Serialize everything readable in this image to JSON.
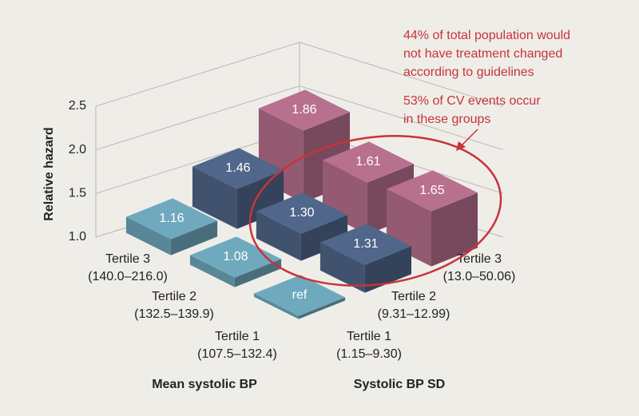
{
  "chart_data": {
    "type": "bar3d",
    "y_label": "Relative hazard",
    "ylim": [
      1,
      2.5
    ],
    "yticks": [
      {
        "value": 1,
        "label": "1.0"
      },
      1.5,
      {
        "value": 2,
        "label": "2.0"
      },
      2.5
    ],
    "x_axis": {
      "title": "Mean systolic BP",
      "categories": [
        "Tertile 1",
        "Tertile 2",
        "Tertile 3"
      ],
      "ranges": [
        "(107.5–132.4)",
        "(132.5–139.9)",
        "(140.0–216.0)"
      ]
    },
    "z_axis": {
      "title": "Systolic BP SD",
      "categories": [
        "Tertile 1",
        "Tertile 2",
        "Tertile 3"
      ],
      "ranges": [
        "(1.15–9.30)",
        "(9.31–12.99)",
        "(13.0–50.06)"
      ]
    },
    "series": [
      {
        "color": "#6fa9bd",
        "values": [
          1,
          1.08,
          1.16
        ],
        "value_labels": [
          "ref",
          "1.08",
          "1.16"
        ]
      },
      {
        "color": "#50668a",
        "values": [
          1.31,
          1.3,
          1.46
        ],
        "value_labels": [
          "1.31",
          "1.30",
          "1.46"
        ]
      },
      {
        "color": "#b8708f",
        "values": [
          1.65,
          1.61,
          1.86
        ],
        "value_labels": [
          "1.65",
          "1.61",
          "1.86"
        ]
      }
    ],
    "annotations": [
      {
        "color": "#c8333b",
        "lines": [
          "44% of total population would",
          "not have treatment changed",
          "according to guidelines"
        ]
      },
      {
        "color": "#c8333b",
        "lines": [
          "53% of CV events occur",
          "in these groups"
        ]
      }
    ]
  }
}
